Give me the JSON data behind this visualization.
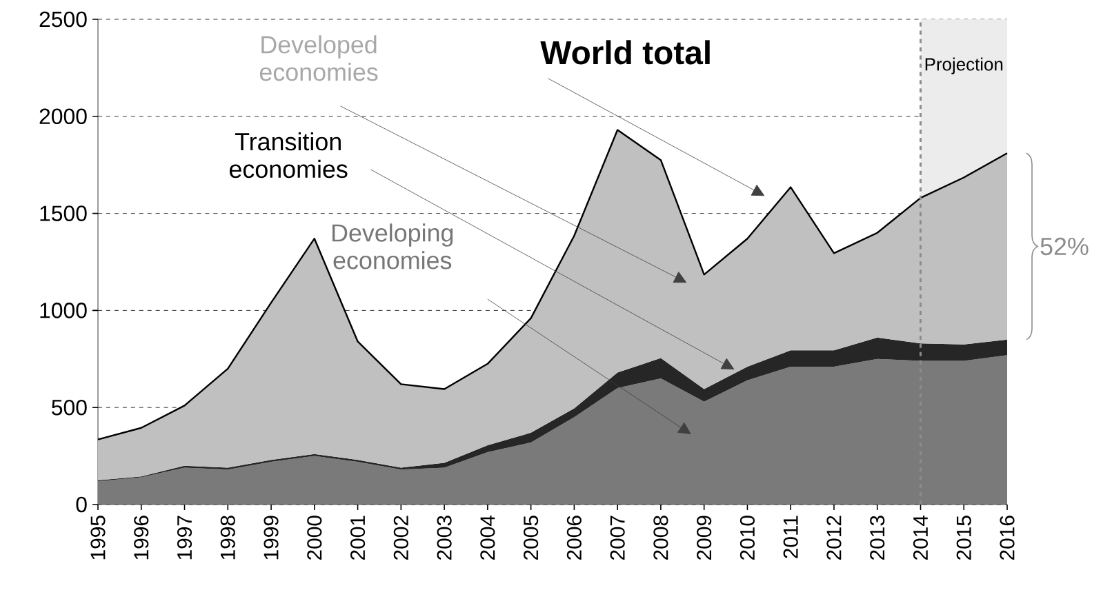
{
  "chart_data": {
    "type": "area",
    "stacked": true,
    "x": [
      1995,
      1996,
      1997,
      1998,
      1999,
      2000,
      2001,
      2002,
      2003,
      2004,
      2005,
      2006,
      2007,
      2008,
      2009,
      2010,
      2011,
      2012,
      2013,
      2014,
      2015,
      2016
    ],
    "series": [
      {
        "name": "Developing economies",
        "color": "#7a7a7a",
        "values": [
          120,
          140,
          190,
          180,
          220,
          250,
          220,
          180,
          190,
          270,
          320,
          450,
          600,
          650,
          530,
          640,
          710,
          710,
          750,
          740,
          740,
          770
        ]
      },
      {
        "name": "Transition economies",
        "color": "#262626",
        "values": [
          5,
          5,
          10,
          10,
          10,
          10,
          10,
          10,
          25,
          35,
          50,
          45,
          80,
          105,
          65,
          70,
          85,
          85,
          110,
          90,
          85,
          80
        ]
      },
      {
        "name": "Developed economies",
        "color": "#c0c0c0",
        "values": [
          210,
          250,
          310,
          510,
          810,
          1110,
          610,
          430,
          380,
          420,
          590,
          890,
          1250,
          1020,
          590,
          660,
          840,
          500,
          540,
          750,
          860,
          960
        ]
      }
    ],
    "xlim": [
      1995,
      2016
    ],
    "ylim": [
      0,
      2500
    ],
    "xticks": [
      1995,
      1996,
      1997,
      1998,
      1999,
      2000,
      2001,
      2002,
      2003,
      2004,
      2005,
      2006,
      2007,
      2008,
      2009,
      2010,
      2011,
      2012,
      2013,
      2014,
      2015,
      2016
    ],
    "yticks": [
      0,
      500,
      1000,
      1500,
      2000,
      2500
    ],
    "grid": "y",
    "ref_lines": [
      {
        "axis": "x",
        "value": 2014,
        "color": "#8c8c8c",
        "line_style": "dashed"
      }
    ],
    "bands": [
      {
        "axis": "x",
        "from": 2014,
        "to": 2016,
        "label": "Projection",
        "color": "#ececec"
      }
    ],
    "annotations": [
      "52%",
      "World total"
    ]
  }
}
